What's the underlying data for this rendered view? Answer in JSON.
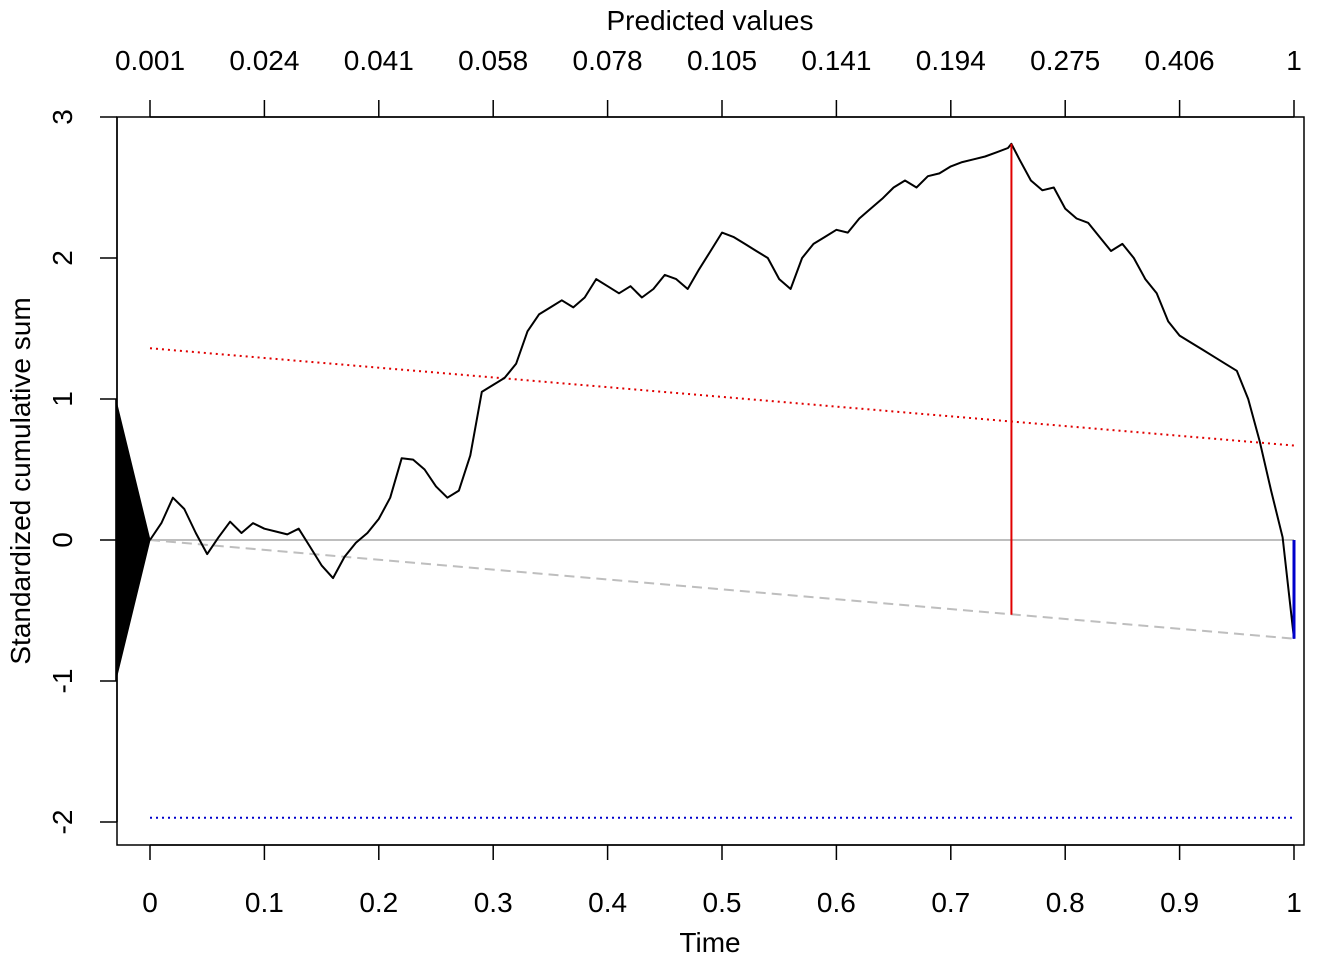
{
  "chart_data": {
    "type": "line",
    "title": "",
    "xlabel": "Time",
    "ylabel": "Standardized cumulative sum",
    "x_top_label": "Predicted values",
    "xlim": [
      -0.03,
      1.01
    ],
    "ylim": [
      -2.2,
      3.0
    ],
    "x_ticks": [
      0,
      0.1,
      0.2,
      0.3,
      0.4,
      0.5,
      0.6,
      0.7,
      0.8,
      0.9,
      1
    ],
    "x_tick_labels": [
      "0",
      "0.1",
      "0.2",
      "0.3",
      "0.4",
      "0.5",
      "0.6",
      "0.7",
      "0.8",
      "0.9",
      "1"
    ],
    "y_ticks": [
      -2,
      -1,
      0,
      1,
      2,
      3
    ],
    "y_tick_labels": [
      "-2",
      "-1",
      "0",
      "1",
      "2",
      "3"
    ],
    "top_ticks": [
      0,
      0.1,
      0.2,
      0.3,
      0.4,
      0.5,
      0.6,
      0.7,
      0.8,
      0.9,
      1
    ],
    "top_tick_labels": [
      "0.001",
      "0.024",
      "0.041",
      "0.058",
      "0.078",
      "0.105",
      "0.141",
      "0.194",
      "0.275",
      "0.406",
      "1"
    ],
    "grid": false,
    "colors": {
      "cusum": "#000000",
      "zero_line": "#bebebe",
      "trend_line": "#bebebe",
      "upper_bound": "#e00000",
      "lower_bound": "#0000cc",
      "max_marker": "#e00000",
      "end_marker": "#0000cc",
      "triangle": "#000000"
    },
    "triangle": {
      "apex": [
        0,
        0
      ],
      "base_x": -0.03,
      "base_y": [
        -1,
        1
      ]
    },
    "zero_line": {
      "y": 0
    },
    "trend_line": {
      "from": [
        0,
        0
      ],
      "to": [
        1,
        -0.7
      ]
    },
    "upper_bound_line": {
      "from": [
        0,
        1.36
      ],
      "to": [
        1,
        0.67
      ]
    },
    "lower_bound_line": {
      "from": [
        0,
        -1.97
      ],
      "to": [
        1,
        -1.97
      ]
    },
    "max_marker": {
      "x": 0.753,
      "y_from": -0.53,
      "y_to": 2.81
    },
    "end_marker": {
      "x": 1.0,
      "y_from": 0.0,
      "y_to": -0.7
    },
    "series": [
      {
        "x": [
          0,
          0.01,
          0.02,
          0.03,
          0.04,
          0.05,
          0.06,
          0.07,
          0.08,
          0.09,
          0.1,
          0.11,
          0.12,
          0.13,
          0.14,
          0.15,
          0.16,
          0.17,
          0.18,
          0.19,
          0.2,
          0.21,
          0.22,
          0.23,
          0.24,
          0.25,
          0.26,
          0.27,
          0.28,
          0.29,
          0.3,
          0.31,
          0.32,
          0.33,
          0.34,
          0.35,
          0.36,
          0.37,
          0.38,
          0.39,
          0.4,
          0.41,
          0.42,
          0.43,
          0.44,
          0.45,
          0.46,
          0.47,
          0.48,
          0.49,
          0.5,
          0.51,
          0.52,
          0.53,
          0.54,
          0.55,
          0.56,
          0.57,
          0.58,
          0.59,
          0.6,
          0.61,
          0.62,
          0.63,
          0.64,
          0.65,
          0.66,
          0.67,
          0.68,
          0.69,
          0.7,
          0.71,
          0.72,
          0.73,
          0.74,
          0.75,
          0.753,
          0.76,
          0.77,
          0.78,
          0.79,
          0.8,
          0.81,
          0.82,
          0.83,
          0.84,
          0.85,
          0.86,
          0.87,
          0.88,
          0.89,
          0.9,
          0.91,
          0.92,
          0.93,
          0.94,
          0.95,
          0.96,
          0.97,
          0.98,
          0.99,
          1.0
        ],
        "y": [
          0,
          0.12,
          0.3,
          0.22,
          0.05,
          -0.1,
          0.02,
          0.13,
          0.05,
          0.12,
          0.08,
          0.06,
          0.04,
          0.08,
          -0.05,
          -0.18,
          -0.27,
          -0.12,
          -0.02,
          0.05,
          0.15,
          0.3,
          0.58,
          0.57,
          0.5,
          0.38,
          0.3,
          0.35,
          0.6,
          1.05,
          1.1,
          1.15,
          1.25,
          1.48,
          1.6,
          1.65,
          1.7,
          1.65,
          1.72,
          1.85,
          1.8,
          1.75,
          1.8,
          1.72,
          1.78,
          1.88,
          1.85,
          1.78,
          1.92,
          2.05,
          2.18,
          2.15,
          2.1,
          2.05,
          2.0,
          1.85,
          1.78,
          2.0,
          2.1,
          2.15,
          2.2,
          2.18,
          2.28,
          2.35,
          2.42,
          2.5,
          2.55,
          2.5,
          2.58,
          2.6,
          2.65,
          2.68,
          2.7,
          2.72,
          2.75,
          2.78,
          2.81,
          2.7,
          2.55,
          2.48,
          2.5,
          2.35,
          2.28,
          2.25,
          2.15,
          2.05,
          2.1,
          2.0,
          1.85,
          1.75,
          1.55,
          1.45,
          1.4,
          1.35,
          1.3,
          1.25,
          1.2,
          1.0,
          0.7,
          0.35,
          0.02,
          -0.7
        ]
      }
    ]
  }
}
